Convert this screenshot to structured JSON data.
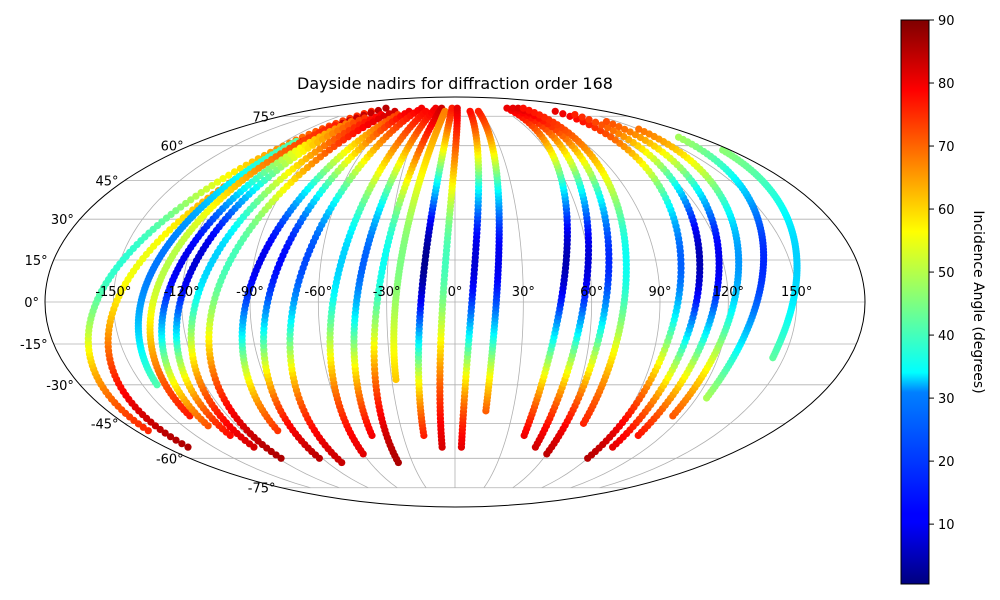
{
  "chart_data": {
    "type": "scatter",
    "projection": "mollweide",
    "title": "Dayside nadirs for diffraction order 168",
    "grid": true,
    "lon_ticks": [
      -150,
      -120,
      -90,
      -60,
      -30,
      0,
      30,
      60,
      90,
      120,
      150
    ],
    "lat_ticks": [
      -75,
      -60,
      -45,
      -30,
      -15,
      0,
      15,
      30,
      45,
      60,
      75
    ],
    "lon_tick_labels": [
      "-150°",
      "-120°",
      "-90°",
      "-60°",
      "-30°",
      "0°",
      "30°",
      "60°",
      "90°",
      "120°",
      "150°"
    ],
    "lat_tick_labels": [
      "-75°",
      "-60°",
      "-45°",
      "-30°",
      "-15°",
      "0°",
      "15°",
      "30°",
      "45°",
      "60°",
      "75°"
    ],
    "colormap": "jet",
    "colorbar": {
      "label": "Incidence Angle (degrees)",
      "range": [
        0.5,
        90
      ],
      "ticks": [
        10,
        20,
        30,
        40,
        50,
        60,
        70,
        80,
        90
      ],
      "tick_labels": [
        "10",
        "20",
        "30",
        "40",
        "50",
        "60",
        "70",
        "80",
        "90"
      ]
    },
    "series_note": "",
    "tracks": [
      {
        "lon_start": -173,
        "lon_end": -100,
        "lat_start": -48,
        "lat_end": 78,
        "inc_low": 38,
        "inc_high": 80
      },
      {
        "lon_start": -166,
        "lon_end": -93,
        "lat_start": -55,
        "lat_end": 80,
        "inc_low": 55,
        "inc_high": 88
      },
      {
        "lon_start": -143,
        "lon_end": -112,
        "lat_start": -30,
        "lat_end": 62,
        "inc_low": 22,
        "inc_high": 50
      },
      {
        "lon_start": -140,
        "lon_end": -104,
        "lat_start": -42,
        "lat_end": 70,
        "inc_low": 50,
        "inc_high": 82
      },
      {
        "lon_start": -136,
        "lon_end": -96,
        "lat_start": -46,
        "lat_end": 72,
        "inc_low": 10,
        "inc_high": 80
      },
      {
        "lon_start": -130,
        "lon_end": -90,
        "lat_start": -50,
        "lat_end": 74,
        "inc_low": 8,
        "inc_high": 85
      },
      {
        "lon_start": -125,
        "lon_end": -80,
        "lat_start": -55,
        "lat_end": 76,
        "inc_low": 30,
        "inc_high": 86
      },
      {
        "lon_start": -118,
        "lon_end": -72,
        "lat_start": -60,
        "lat_end": 78,
        "inc_low": 40,
        "inc_high": 88
      },
      {
        "lon_start": -100,
        "lon_end": -62,
        "lat_start": -48,
        "lat_end": 76,
        "inc_low": 10,
        "inc_high": 82
      },
      {
        "lon_start": -92,
        "lon_end": -55,
        "lat_start": -60,
        "lat_end": 78,
        "inc_low": 12,
        "inc_high": 88
      },
      {
        "lon_start": -80,
        "lon_end": -45,
        "lat_start": -62,
        "lat_end": 80,
        "inc_low": 18,
        "inc_high": 86
      },
      {
        "lon_start": -60,
        "lon_end": -35,
        "lat_start": -58,
        "lat_end": 78,
        "inc_low": 30,
        "inc_high": 84
      },
      {
        "lon_start": -48,
        "lon_end": -26,
        "lat_start": -50,
        "lat_end": 80,
        "inc_low": 20,
        "inc_high": 86
      },
      {
        "lon_start": -40,
        "lon_end": -18,
        "lat_start": -62,
        "lat_end": 80,
        "inc_low": 35,
        "inc_high": 88
      },
      {
        "lon_start": -28,
        "lon_end": -12,
        "lat_start": -28,
        "lat_end": 78,
        "inc_low": 45,
        "inc_high": 70
      },
      {
        "lon_start": -18,
        "lon_end": -4,
        "lat_start": -50,
        "lat_end": 80,
        "inc_low": 2,
        "inc_high": 84
      },
      {
        "lon_start": -8,
        "lon_end": 3,
        "lat_start": -55,
        "lat_end": 80,
        "inc_low": 40,
        "inc_high": 85
      },
      {
        "lon_start": 4,
        "lon_end": 18,
        "lat_start": -55,
        "lat_end": 78,
        "inc_low": 8,
        "inc_high": 86
      },
      {
        "lon_start": 16,
        "lon_end": 28,
        "lat_start": -40,
        "lat_end": 78,
        "inc_low": 10,
        "inc_high": 84
      },
      {
        "lon_start": 40,
        "lon_end": 70,
        "lat_start": -50,
        "lat_end": 80,
        "inc_low": 5,
        "inc_high": 88
      },
      {
        "lon_start": 50,
        "lon_end": 78,
        "lat_start": -55,
        "lat_end": 80,
        "inc_low": 8,
        "inc_high": 88
      },
      {
        "lon_start": 60,
        "lon_end": 85,
        "lat_start": -58,
        "lat_end": 80,
        "inc_low": 15,
        "inc_high": 88
      },
      {
        "lon_start": 70,
        "lon_end": 92,
        "lat_start": -45,
        "lat_end": 80,
        "inc_low": 35,
        "inc_high": 82
      },
      {
        "lon_start": 90,
        "lon_end": 120,
        "lat_start": -60,
        "lat_end": 78,
        "inc_low": 20,
        "inc_high": 88
      },
      {
        "lon_start": 98,
        "lon_end": 130,
        "lat_start": -55,
        "lat_end": 76,
        "inc_low": 5,
        "inc_high": 86
      },
      {
        "lon_start": 106,
        "lon_end": 140,
        "lat_start": -50,
        "lat_end": 72,
        "inc_low": 10,
        "inc_high": 84
      },
      {
        "lon_start": 115,
        "lon_end": 150,
        "lat_start": -42,
        "lat_end": 68,
        "inc_low": 25,
        "inc_high": 80
      },
      {
        "lon_start": 125,
        "lon_end": 165,
        "lat_start": -35,
        "lat_end": 64,
        "inc_low": 15,
        "inc_high": 60
      },
      {
        "lon_start": 145,
        "lon_end": 175,
        "lat_start": -20,
        "lat_end": 58,
        "inc_low": 30,
        "inc_high": 55
      }
    ]
  }
}
